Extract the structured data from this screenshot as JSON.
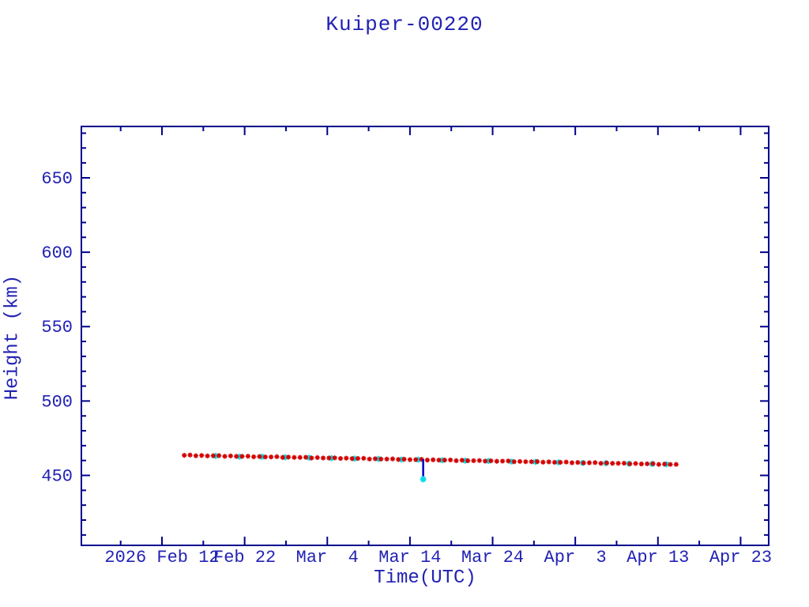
{
  "window": {
    "title": "Kuiper-00220"
  },
  "colors": {
    "background": "#ffffff",
    "axis": "#00008b",
    "text": "#2222b4",
    "red_marker": "#d40000",
    "cyan_marker": "#00dde8",
    "outlier_line": "#0000cd"
  },
  "chart_data": {
    "type": "scatter",
    "title": "Kuiper-00220",
    "xlabel": "Time(UTC)",
    "ylabel": "Height (km)",
    "x_unit": "days since 2026 Feb 12 (UTC)",
    "xlim": [
      -9.75,
      73.4
    ],
    "ylim": [
      403,
      684.5
    ],
    "grid": false,
    "legend_position": "none",
    "x_ticks": [
      {
        "day": 0,
        "label": "2026 Feb 12"
      },
      {
        "day": 10,
        "label": "Feb 22"
      },
      {
        "day": 20,
        "label": "Mar  4"
      },
      {
        "day": 30,
        "label": "Mar 14"
      },
      {
        "day": 40,
        "label": "Mar 24"
      },
      {
        "day": 50,
        "label": "Apr  3"
      },
      {
        "day": 60,
        "label": "Apr 13"
      },
      {
        "day": 70,
        "label": "Apr 23"
      }
    ],
    "x_minor_step": 5,
    "y_ticks": [
      450,
      500,
      550,
      600,
      650
    ],
    "y_minor_step": 10,
    "series": [
      {
        "name": "cyan-asterisks",
        "marker": "asterisk",
        "color_key": "cyan_marker",
        "points": [
          [
            6.5,
            463.1
          ],
          [
            9.4,
            462.6
          ],
          [
            12.1,
            462.5
          ],
          [
            14.9,
            462.2
          ],
          [
            17.8,
            461.9
          ],
          [
            20.5,
            461.6
          ],
          [
            23.3,
            461.3
          ],
          [
            26.2,
            461.1
          ],
          [
            29.0,
            460.7
          ],
          [
            31.0,
            460.6
          ],
          [
            33.9,
            460.2
          ],
          [
            36.7,
            459.9
          ],
          [
            39.5,
            459.7
          ],
          [
            42.3,
            459.3
          ],
          [
            45.2,
            459.1
          ],
          [
            48.0,
            458.8
          ],
          [
            50.9,
            458.4
          ],
          [
            53.7,
            458.2
          ],
          [
            56.5,
            457.9
          ],
          [
            59.3,
            457.7
          ],
          [
            61.0,
            457.5
          ]
        ]
      },
      {
        "name": "red-asterisks",
        "marker": "asterisk",
        "color_key": "red_marker",
        "points": [
          [
            2.7,
            463.5
          ],
          [
            3.4,
            463.7
          ],
          [
            4.1,
            463.2
          ],
          [
            4.8,
            463.4
          ],
          [
            5.5,
            463.1
          ],
          [
            6.2,
            463.2
          ],
          [
            6.9,
            463.3
          ],
          [
            7.6,
            462.8
          ],
          [
            8.3,
            463.1
          ],
          [
            9.0,
            462.8
          ],
          [
            9.7,
            462.8
          ],
          [
            10.4,
            462.9
          ],
          [
            11.1,
            462.5
          ],
          [
            11.8,
            462.7
          ],
          [
            12.5,
            462.4
          ],
          [
            13.2,
            462.4
          ],
          [
            13.9,
            462.6
          ],
          [
            14.6,
            462.1
          ],
          [
            15.3,
            462.3
          ],
          [
            16.0,
            462.1
          ],
          [
            16.7,
            462.1
          ],
          [
            17.4,
            462.2
          ],
          [
            18.1,
            461.7
          ],
          [
            18.8,
            462.0
          ],
          [
            19.5,
            461.7
          ],
          [
            20.2,
            461.7
          ],
          [
            20.9,
            461.8
          ],
          [
            21.6,
            461.4
          ],
          [
            22.3,
            461.6
          ],
          [
            23.0,
            461.3
          ],
          [
            23.7,
            461.4
          ],
          [
            24.4,
            461.5
          ],
          [
            25.1,
            461.0
          ],
          [
            25.8,
            461.2
          ],
          [
            26.5,
            461.0
          ],
          [
            27.2,
            461.0
          ],
          [
            27.9,
            461.1
          ],
          [
            28.6,
            460.7
          ],
          [
            29.3,
            460.9
          ],
          [
            30.0,
            460.6
          ],
          [
            30.7,
            460.6
          ],
          [
            31.4,
            460.8
          ],
          [
            32.1,
            460.3
          ],
          [
            32.8,
            460.5
          ],
          [
            33.5,
            460.3
          ],
          [
            34.2,
            460.3
          ],
          [
            34.9,
            460.4
          ],
          [
            35.6,
            459.9
          ],
          [
            36.3,
            460.2
          ],
          [
            37.0,
            459.9
          ],
          [
            37.7,
            459.9
          ],
          [
            38.4,
            460.0
          ],
          [
            39.1,
            459.6
          ],
          [
            39.8,
            459.8
          ],
          [
            40.5,
            459.5
          ],
          [
            41.2,
            459.6
          ],
          [
            41.9,
            459.7
          ],
          [
            42.6,
            459.2
          ],
          [
            43.3,
            459.4
          ],
          [
            44.0,
            459.2
          ],
          [
            44.7,
            459.2
          ],
          [
            45.4,
            459.3
          ],
          [
            46.1,
            458.9
          ],
          [
            46.8,
            459.1
          ],
          [
            47.5,
            458.8
          ],
          [
            48.2,
            458.8
          ],
          [
            48.9,
            459.0
          ],
          [
            49.6,
            458.5
          ],
          [
            50.3,
            458.7
          ],
          [
            51.0,
            458.4
          ],
          [
            51.7,
            458.5
          ],
          [
            52.4,
            458.6
          ],
          [
            53.1,
            458.1
          ],
          [
            53.8,
            458.4
          ],
          [
            54.5,
            458.1
          ],
          [
            55.2,
            458.1
          ],
          [
            55.9,
            458.2
          ],
          [
            56.6,
            457.8
          ],
          [
            57.3,
            458.0
          ],
          [
            58.0,
            457.7
          ],
          [
            58.7,
            457.8
          ],
          [
            59.4,
            457.9
          ],
          [
            60.1,
            457.4
          ],
          [
            60.8,
            457.6
          ],
          [
            61.5,
            457.4
          ],
          [
            62.2,
            457.4
          ]
        ]
      }
    ],
    "outlier": {
      "day": 31.6,
      "height": 447.4,
      "line_top_height": 460.9,
      "description": "single low point connected to band by vertical line"
    }
  }
}
